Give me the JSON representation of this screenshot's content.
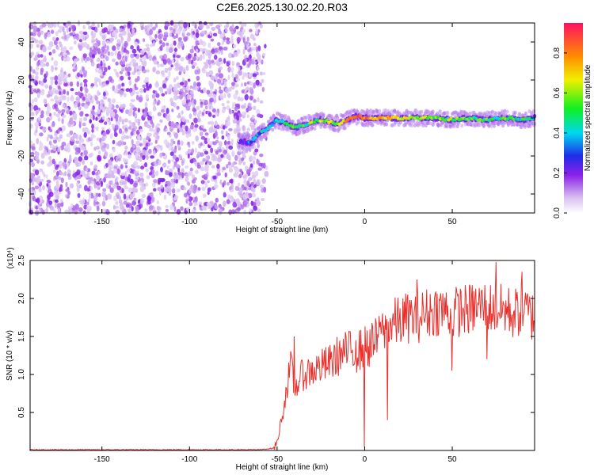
{
  "title": "C2E6.2025.130.02.20.R03",
  "colors": {
    "background": "#ffffff",
    "snr_line": "#e8302c",
    "scatter_noise": "#7b1fe0",
    "axis": "#000000"
  },
  "chart_data": [
    {
      "type": "heatmap",
      "xlabel": "Height of straight line (km)",
      "ylabel": "Frequency (Hz)",
      "xlim": [
        -191,
        97
      ],
      "ylim": [
        -50,
        50
      ],
      "xticks": [
        -150,
        -100,
        -50,
        0,
        50
      ],
      "yticks": [
        -40,
        -20,
        0,
        20,
        40
      ],
      "colorbar": {
        "label": "Normalized spectral amplitude",
        "range": [
          0,
          0.95
        ],
        "ticks": [
          0.0,
          0.2,
          0.4,
          0.6,
          0.8
        ],
        "colormap": "white-purple-blue-cyan-green-yellow-orange-red"
      },
      "noise_region_x": [
        -191,
        -60
      ],
      "signal_trace": {
        "x": [
          -72,
          -65,
          -60,
          -55,
          -50,
          -45,
          -40,
          -35,
          -30,
          -25,
          -20,
          -15,
          -10,
          -5,
          0,
          10,
          20,
          30,
          40,
          50,
          60,
          70,
          80,
          90,
          97
        ],
        "y": [
          -12,
          -13,
          -8,
          -5,
          -1,
          -3,
          -5,
          -4,
          -2,
          -1,
          -2,
          -3,
          -1,
          1,
          0,
          0,
          0,
          0,
          0,
          -1,
          0,
          -1,
          0,
          -1,
          0
        ],
        "amplitude": [
          0.15,
          0.3,
          0.35,
          0.4,
          0.45,
          0.45,
          0.5,
          0.5,
          0.55,
          0.6,
          0.6,
          0.65,
          0.75,
          0.8,
          0.85,
          0.7,
          0.65,
          0.6,
          0.55,
          0.55,
          0.5,
          0.5,
          0.5,
          0.45,
          0.45
        ]
      }
    },
    {
      "type": "line",
      "xlabel": "Height of straight line (km)",
      "ylabel": "SNR (10 * v/v)",
      "y_multiplier": "(x10⁴)",
      "xlim": [
        -191,
        97
      ],
      "ylim": [
        0,
        2.5
      ],
      "xticks": [
        -150,
        -100,
        -50,
        0,
        50
      ],
      "yticks": [
        0.5,
        1.0,
        1.5,
        2.0,
        2.5
      ],
      "series": [
        {
          "x": [
            -191,
            -150,
            -100,
            -60,
            -52,
            -50,
            -48,
            -46,
            -44,
            -42,
            -40,
            -37,
            -35,
            -30,
            -25,
            -20,
            -15,
            -10,
            -5,
            0,
            5,
            10,
            13,
            15,
            20,
            25,
            30,
            35,
            40,
            45,
            50,
            55,
            60,
            65,
            70,
            75,
            80,
            85,
            90,
            97
          ],
          "y": [
            0.01,
            0.01,
            0.01,
            0.01,
            0.03,
            0.1,
            0.35,
            0.6,
            0.9,
            1.1,
            0.8,
            0.95,
            1.0,
            1.05,
            1.1,
            1.15,
            1.25,
            1.3,
            1.3,
            1.35,
            1.4,
            1.55,
            1.6,
            1.65,
            1.7,
            1.75,
            1.75,
            1.8,
            1.85,
            1.85,
            1.8,
            1.85,
            1.85,
            1.9,
            1.9,
            1.85,
            1.85,
            1.8,
            1.85,
            1.75
          ],
          "peaks": [
            {
              "x": -40,
              "y": 1.5
            },
            {
              "x": -5,
              "y": 1.45
            },
            {
              "x": 10,
              "y": 1.65
            },
            {
              "x": 30,
              "y": 2.25
            },
            {
              "x": 75,
              "y": 2.48
            },
            {
              "x": 90,
              "y": 2.35
            }
          ],
          "dips": [
            {
              "x": 0,
              "y": 0.05
            },
            {
              "x": 13,
              "y": 0.4
            },
            {
              "x": 50,
              "y": 1.05
            },
            {
              "x": 70,
              "y": 1.2
            }
          ]
        }
      ]
    }
  ]
}
